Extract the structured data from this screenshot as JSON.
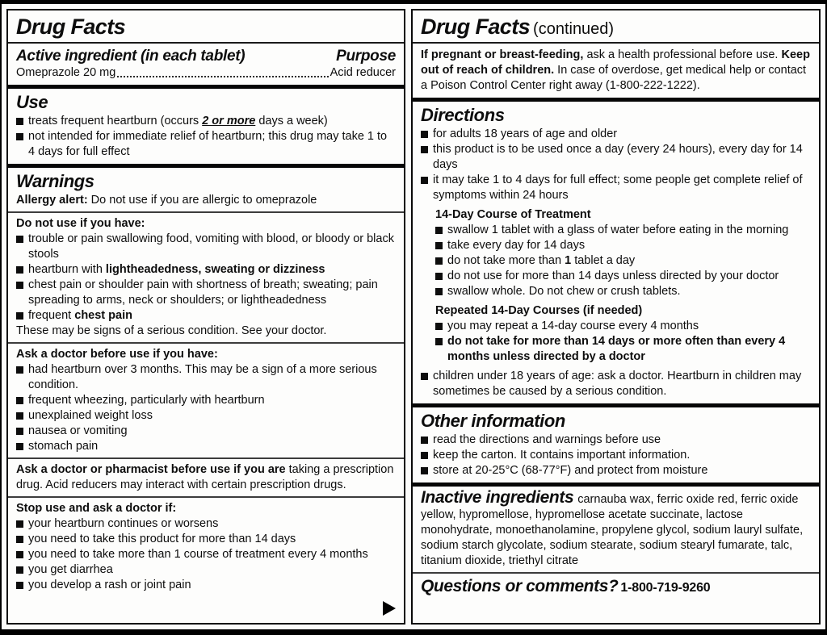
{
  "left": {
    "title": "Drug Facts",
    "active": {
      "heading": "Active ingredient (in each tablet)",
      "purpose_heading": "Purpose",
      "ingredient": "Omeprazole 20 mg",
      "purpose": "Acid reducer"
    },
    "use": {
      "heading": "Use",
      "bullets": [
        [
          {
            "t": "treats frequent heartburn (occurs "
          },
          {
            "t": "2 or more",
            "b": true,
            "i": true,
            "u": true
          },
          {
            "t": " days a week)"
          }
        ],
        [
          {
            "t": "not intended for immediate relief of heartburn; this drug may take 1 to 4 days for full effect"
          }
        ]
      ]
    },
    "warnings": {
      "heading": "Warnings",
      "allergy": [
        {
          "t": "Allergy alert:",
          "b": true
        },
        {
          "t": " Do not use if you are allergic to omeprazole"
        }
      ],
      "do_not_use": {
        "heading": "Do not use if you have:",
        "bullets": [
          [
            {
              "t": "trouble or pain swallowing food, vomiting with blood, or bloody or black stools"
            }
          ],
          [
            {
              "t": "heartburn with "
            },
            {
              "t": "lightheadedness, sweating or dizziness",
              "b": true
            }
          ],
          [
            {
              "t": "chest pain or shoulder pain with shortness of breath; sweating; pain spreading to arms, neck or shoulders; or lightheadedness"
            }
          ],
          [
            {
              "t": "frequent "
            },
            {
              "t": "chest pain",
              "b": true
            }
          ]
        ],
        "note": "These may be signs of a serious condition. See your doctor."
      },
      "ask_doctor": {
        "heading": "Ask a doctor before use if you have:",
        "bullets": [
          [
            {
              "t": "had heartburn over 3 months. This may be a sign of a more serious condition."
            }
          ],
          [
            {
              "t": "frequent wheezing, particularly with heartburn"
            }
          ],
          [
            {
              "t": "unexplained weight loss"
            }
          ],
          [
            {
              "t": "nausea or vomiting"
            }
          ],
          [
            {
              "t": "stomach pain"
            }
          ]
        ]
      },
      "ask_pharmacist": [
        {
          "t": "Ask a doctor or pharmacist before use if you are",
          "b": true
        },
        {
          "t": " taking a prescription drug. Acid reducers may interact with certain prescription drugs."
        }
      ],
      "stop_use": {
        "heading": "Stop use and ask a doctor if:",
        "bullets": [
          [
            {
              "t": "your heartburn continues or worsens"
            }
          ],
          [
            {
              "t": "you need to take this product for more than 14 days"
            }
          ],
          [
            {
              "t": "you need to take more than 1 course of treatment every 4 months"
            }
          ],
          [
            {
              "t": "you get diarrhea"
            }
          ],
          [
            {
              "t": "you develop a rash or joint pain"
            }
          ]
        ]
      }
    }
  },
  "right": {
    "title": "Drug Facts",
    "continued": "(continued)",
    "pregnancy": [
      {
        "t": "If pregnant or breast-feeding,",
        "b": true
      },
      {
        "t": " ask a health professional before use. "
      },
      {
        "t": "Keep out of reach of children.",
        "b": true
      },
      {
        "t": " In case of overdose, get medical help or contact a Poison Control Center right away (1-800-222-1222)."
      }
    ],
    "directions": {
      "heading": "Directions",
      "bullets": [
        [
          {
            "t": "for adults 18 years of age and older"
          }
        ],
        [
          {
            "t": "this product is to be used once a day (every 24 hours), every day for 14 days"
          }
        ],
        [
          {
            "t": "it may take 1 to 4 days for full effect; some people get complete relief of symptoms within 24 hours"
          }
        ]
      ],
      "course": {
        "heading": "14-Day Course of Treatment",
        "bullets": [
          [
            {
              "t": "swallow 1 tablet with a glass of water before eating in the morning"
            }
          ],
          [
            {
              "t": "take every day for 14 days"
            }
          ],
          [
            {
              "t": "do not take more than "
            },
            {
              "t": "1",
              "b": true
            },
            {
              "t": " tablet a day"
            }
          ],
          [
            {
              "t": "do not use for more than 14 days unless directed by your doctor"
            }
          ],
          [
            {
              "t": "swallow whole. Do not chew or crush tablets."
            }
          ]
        ]
      },
      "repeated": {
        "heading": "Repeated 14-Day Courses (if needed)",
        "bullets": [
          [
            {
              "t": "you may repeat a 14-day course every 4 months"
            }
          ],
          [
            {
              "t": "do not take for more than 14 days or more often than every 4 months unless directed by a doctor",
              "b": true
            }
          ]
        ]
      },
      "children": [
        {
          "t": "children under 18 years of age: ask a doctor. Heartburn in children may sometimes be caused by a serious condition."
        }
      ]
    },
    "other": {
      "heading": "Other information",
      "bullets": [
        [
          {
            "t": "read the directions and warnings before use"
          }
        ],
        [
          {
            "t": "keep the carton. It contains important information."
          }
        ],
        [
          {
            "t": "store at 20-25°C (68-77°F) and protect from moisture"
          }
        ]
      ]
    },
    "inactive": {
      "heading": "Inactive ingredients",
      "text": "carnauba wax, ferric oxide red, ferric oxide yellow, hypromellose, hypromellose acetate succinate, lactose monohydrate, monoethanolamine, propylene glycol, sodium lauryl sulfate, sodium starch glycolate, sodium stearate, sodium stearyl fumarate, talc, titanium dioxide, triethyl citrate"
    },
    "questions": {
      "heading": "Questions or comments?",
      "phone": "1-800-719-9260"
    }
  }
}
